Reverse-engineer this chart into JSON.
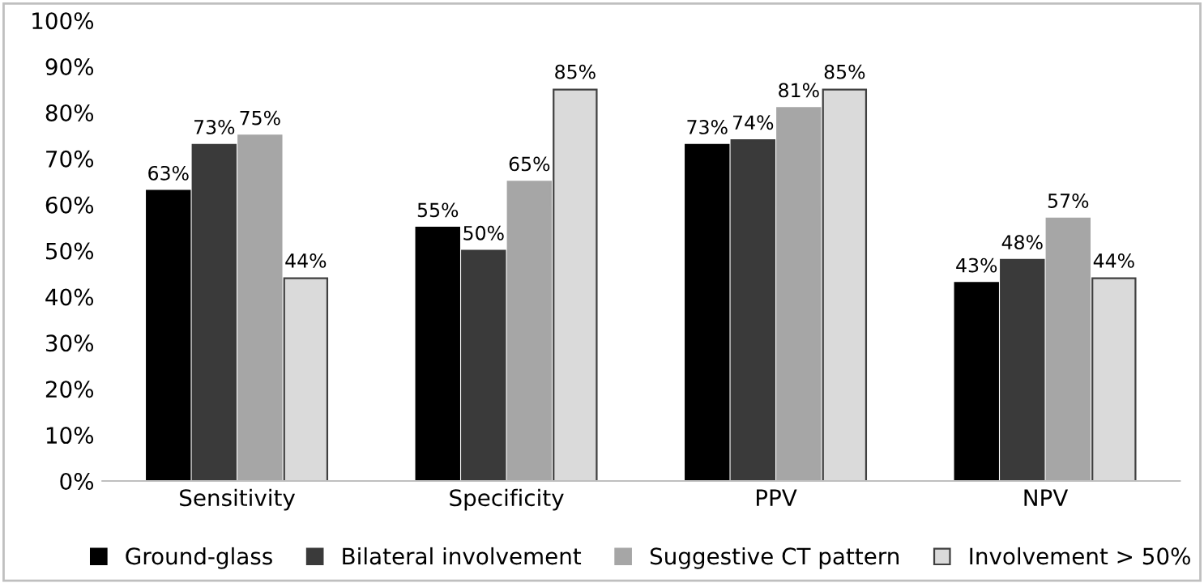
{
  "chart_data": {
    "type": "bar",
    "categories": [
      "Sensitivity",
      "Specificity",
      "PPV",
      "NPV"
    ],
    "series": [
      {
        "name": "Ground-glass",
        "color": "#000000",
        "values": [
          63,
          55,
          73,
          43
        ],
        "value_labels": [
          "63%",
          "55%",
          "73%",
          "43%"
        ]
      },
      {
        "name": "Bilateral involvement",
        "color": "#3a3a3a",
        "values": [
          73,
          50,
          74,
          48
        ],
        "value_labels": [
          "73%",
          "50%",
          "74%",
          "48%"
        ]
      },
      {
        "name": "Suggestive CT pattern",
        "color": "#a6a6a6",
        "values": [
          75,
          65,
          81,
          57
        ],
        "value_labels": [
          "75%",
          "65%",
          "81%",
          "57%"
        ]
      },
      {
        "name": "Involvement > 50%",
        "color": "#dadada",
        "values": [
          44,
          85,
          85,
          44
        ],
        "value_labels": [
          "44%",
          "85%",
          "85%",
          "44%"
        ]
      }
    ],
    "ylim": [
      0,
      100
    ],
    "yticks": [
      {
        "value": 0,
        "label": "0%"
      },
      {
        "value": 10,
        "label": "10%"
      },
      {
        "value": 20,
        "label": "20%"
      },
      {
        "value": 30,
        "label": "30%"
      },
      {
        "value": 40,
        "label": "40%"
      },
      {
        "value": 50,
        "label": "50%"
      },
      {
        "value": 60,
        "label": "60%"
      },
      {
        "value": 70,
        "label": "70%"
      },
      {
        "value": 80,
        "label": "80%"
      },
      {
        "value": 90,
        "label": "90%"
      },
      {
        "value": 100,
        "label": "100%"
      }
    ],
    "grid": false,
    "legend": "bottom"
  }
}
